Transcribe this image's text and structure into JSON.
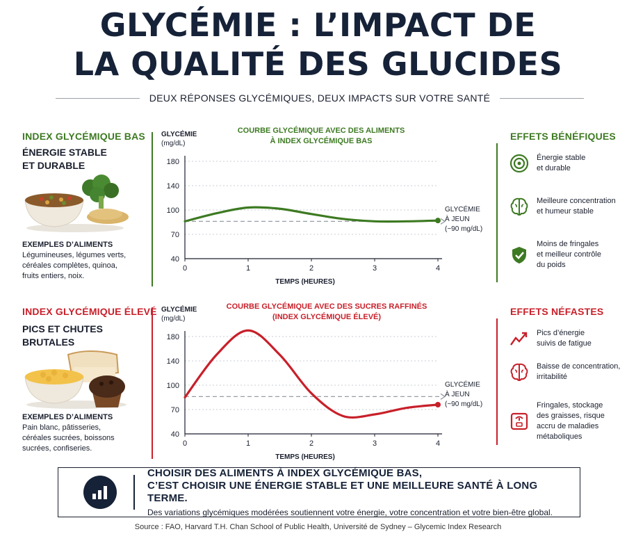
{
  "title_line1": "GLYCÉMIE : L’IMPACT DE",
  "title_line2": "LA QUALITÉ DES GLUCIDES",
  "subtitle": "DEUX RÉPONSES GLYCÉMIQUES, DEUX IMPACTS SUR VOTRE SANTÉ",
  "low": {
    "heading": "INDEX GLYCÉMIQUE BAS",
    "subheading": "ÉNERGIE STABLE\nET DURABLE",
    "examples_title": "EXEMPLES D’ALIMENTS",
    "examples": "Légumineuses, légumes verts, céréales complètes, quinoa, fruits entiers, noix.",
    "effects_title": "EFFETS BÉNÉFIQUES",
    "effects": [
      {
        "icon": "target-icon",
        "text": "Énergie stable\net durable"
      },
      {
        "icon": "brain-icon",
        "text": "Meilleure concentration\net humeur stable"
      },
      {
        "icon": "shield-check-icon",
        "text": "Moins de fringales\net meilleur contrôle\ndu poids"
      }
    ]
  },
  "high": {
    "heading": "INDEX GLYCÉMIQUE ÉLEVÉ",
    "subheading": "PICS ET CHUTES\nBRUTALES",
    "examples_title": "EXEMPLES D’ALIMENTS",
    "examples": "Pain blanc, pâtisseries, céréales sucrées, boissons sucrées, confiseries.",
    "effects_title": "EFFETS NÉFASTES",
    "effects": [
      {
        "icon": "trend-zigzag-icon",
        "text": "Pics d’énergie\nsuivis de fatigue"
      },
      {
        "icon": "brain-icon",
        "text": "Baisse de concentration,\nirritabilité"
      },
      {
        "icon": "scale-icon",
        "text": "Fringales, stockage\ndes graisses, risque\naccru de maladies\nmétaboliques"
      }
    ]
  },
  "footer": {
    "headline_line1": "CHOISIR DES ALIMENTS À INDEX GLYCÉMIQUE BAS,",
    "headline_line2": "C’EST CHOISIR UNE ÉNERGIE STABLE ET UNE MEILLEURE SANTÉ À LONG TERME.",
    "body": "Des variations glycémiques modérées soutiennent votre énergie, votre concentration et votre bien-être global.",
    "icon": "bar-chart-icon"
  },
  "source": "Source : FAO, Harvard T.H. Chan School of Public Health, Université de Sydney – Glycemic Index Research",
  "colors": {
    "green": "#3d7a22",
    "red": "#c8202a",
    "navy": "#162238"
  },
  "chart_data": [
    {
      "type": "line",
      "title_line1": "COURBE GLYCÉMIQUE AVEC DES ALIMENTS",
      "title_line2": "À INDEX GLYCÉMIQUE BAS",
      "ylabel_line1": "GLYCÉMIE",
      "ylabel_line2": "(mg/dL)",
      "xlabel": "TEMPS (HEURES)",
      "x_ticks": [
        "0",
        "1",
        "2",
        "3",
        "4"
      ],
      "y_ticks": [
        "180",
        "140",
        "100",
        "70",
        "40"
      ],
      "y_tick_values": [
        180,
        140,
        100,
        70,
        40
      ],
      "x": [
        0,
        0.5,
        1,
        1.5,
        2,
        2.5,
        3,
        3.5,
        4
      ],
      "y": [
        86,
        96,
        104,
        102,
        95,
        89,
        86,
        86,
        87
      ],
      "baseline": 86,
      "baseline_label": [
        "GLYCÉMIE",
        "À JEUN",
        "(~90 mg/dL)"
      ],
      "color": "#3d7a22",
      "grid": true
    },
    {
      "type": "line",
      "title_line1": "COURBE GLYCÉMIQUE AVEC DES SUCRES RAFFINÉS",
      "title_line2": "(INDEX GLYCÉMIQUE ÉLEVÉ)",
      "ylabel_line1": "GLYCÉMIE",
      "ylabel_line2": "(mg/dL)",
      "xlabel": "TEMPS (HEURES)",
      "x_ticks": [
        "0",
        "1",
        "2",
        "3",
        "4"
      ],
      "y_ticks": [
        "180",
        "140",
        "100",
        "70",
        "40"
      ],
      "y_tick_values": [
        180,
        140,
        100,
        70,
        40
      ],
      "x": [
        0,
        0.5,
        1,
        1.5,
        2,
        2.5,
        3,
        3.5,
        4
      ],
      "y": [
        85,
        150,
        190,
        150,
        90,
        62,
        64,
        72,
        76
      ],
      "baseline": 86,
      "baseline_label": [
        "GLYCÉMIE",
        "À JEUN",
        "(~90 mg/dL)"
      ],
      "color": "#c8202a",
      "grid": true
    }
  ]
}
